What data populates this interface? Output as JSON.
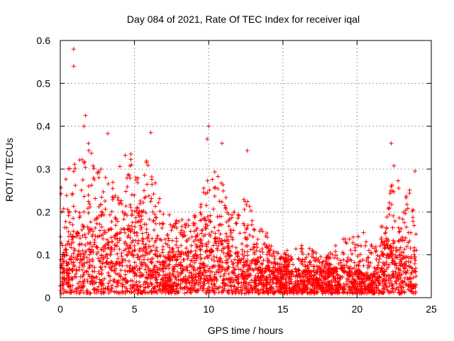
{
  "chart_data": {
    "type": "scatter",
    "title": "Day 084 of 2021, Rate Of TEC Index for receiver iqal",
    "xlabel": "GPS time / hours",
    "ylabel": "ROTI / TECUs",
    "xlim": [
      0,
      25
    ],
    "ylim": [
      0,
      0.6
    ],
    "x_ticks": [
      "0",
      "5",
      "10",
      "15",
      "20",
      "25"
    ],
    "y_ticks": [
      "0",
      "0.1",
      "0.2",
      "0.3",
      "0.4",
      "0.5",
      "0.6"
    ],
    "grid": true,
    "marker": "+",
    "series_color": "#ff0000",
    "data_span_hours": [
      0,
      24
    ],
    "outliers": [
      {
        "x": 0.9,
        "y": 0.58
      },
      {
        "x": 0.9,
        "y": 0.54
      },
      {
        "x": 1.7,
        "y": 0.425
      },
      {
        "x": 1.6,
        "y": 0.4
      },
      {
        "x": 3.2,
        "y": 0.383
      },
      {
        "x": 6.1,
        "y": 0.385
      },
      {
        "x": 10.0,
        "y": 0.4
      },
      {
        "x": 9.9,
        "y": 0.37
      },
      {
        "x": 10.9,
        "y": 0.36
      },
      {
        "x": 12.6,
        "y": 0.343
      },
      {
        "x": 22.3,
        "y": 0.36
      },
      {
        "x": 23.9,
        "y": 0.295
      }
    ],
    "envelope_upper": [
      [
        0,
        0.26
      ],
      [
        0.5,
        0.3
      ],
      [
        1.0,
        0.33
      ],
      [
        1.5,
        0.37
      ],
      [
        2.0,
        0.36
      ],
      [
        2.5,
        0.3
      ],
      [
        3.0,
        0.3
      ],
      [
        3.5,
        0.27
      ],
      [
        4.0,
        0.33
      ],
      [
        4.5,
        0.35
      ],
      [
        5.0,
        0.33
      ],
      [
        5.5,
        0.28
      ],
      [
        6.0,
        0.36
      ],
      [
        6.5,
        0.25
      ],
      [
        7.0,
        0.21
      ],
      [
        7.5,
        0.2
      ],
      [
        8.0,
        0.19
      ],
      [
        8.5,
        0.21
      ],
      [
        9.0,
        0.2
      ],
      [
        9.5,
        0.24
      ],
      [
        10.0,
        0.33
      ],
      [
        10.5,
        0.3
      ],
      [
        11.0,
        0.29
      ],
      [
        11.5,
        0.2
      ],
      [
        12.0,
        0.22
      ],
      [
        12.5,
        0.25
      ],
      [
        13.0,
        0.19
      ],
      [
        13.5,
        0.17
      ],
      [
        14.0,
        0.15
      ],
      [
        14.5,
        0.11
      ],
      [
        15.0,
        0.1
      ],
      [
        15.5,
        0.12
      ],
      [
        16.0,
        0.12
      ],
      [
        16.5,
        0.13
      ],
      [
        17.0,
        0.11
      ],
      [
        17.5,
        0.1
      ],
      [
        18.0,
        0.1
      ],
      [
        18.5,
        0.12
      ],
      [
        19.0,
        0.14
      ],
      [
        19.5,
        0.18
      ],
      [
        20.0,
        0.14
      ],
      [
        20.5,
        0.17
      ],
      [
        21.0,
        0.12
      ],
      [
        21.5,
        0.15
      ],
      [
        22.0,
        0.22
      ],
      [
        22.5,
        0.34
      ],
      [
        23.0,
        0.22
      ],
      [
        23.5,
        0.26
      ],
      [
        24.0,
        0.18
      ]
    ],
    "envelope_dense": [
      [
        0,
        0.08
      ],
      [
        1,
        0.15
      ],
      [
        2,
        0.16
      ],
      [
        3,
        0.14
      ],
      [
        4,
        0.15
      ],
      [
        5,
        0.16
      ],
      [
        6,
        0.12
      ],
      [
        7,
        0.09
      ],
      [
        8,
        0.1
      ],
      [
        9,
        0.11
      ],
      [
        10,
        0.16
      ],
      [
        11,
        0.12
      ],
      [
        12,
        0.1
      ],
      [
        13,
        0.09
      ],
      [
        14,
        0.07
      ],
      [
        15,
        0.06
      ],
      [
        16,
        0.06
      ],
      [
        17,
        0.06
      ],
      [
        18,
        0.06
      ],
      [
        19,
        0.07
      ],
      [
        20,
        0.06
      ],
      [
        21,
        0.05
      ],
      [
        22,
        0.12
      ],
      [
        23,
        0.11
      ],
      [
        24,
        0.08
      ]
    ],
    "baseline_min": 0.01
  }
}
